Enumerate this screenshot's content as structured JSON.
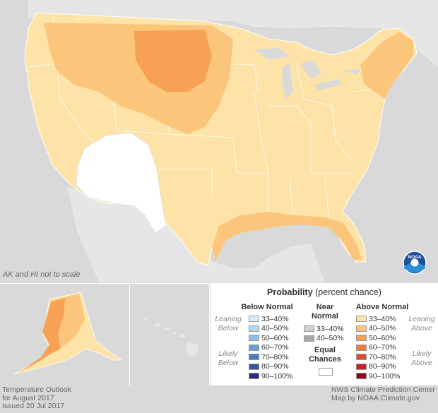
{
  "map": {
    "note": "AK and HI not to scale"
  },
  "legend": {
    "title_bold": "Probability",
    "title_rest": "(percent chance)",
    "below_header": "Below Normal",
    "near_header_1": "Near",
    "near_header_2": "Normal",
    "above_header": "Above Normal",
    "leaning": "Leaning",
    "below_word": "Below",
    "above_word": "Above",
    "likely": "Likely",
    "equal_1": "Equal",
    "equal_2": "Chances",
    "below_rows": [
      {
        "label": "33–40%",
        "color": "#d6ecf8"
      },
      {
        "label": "40–50%",
        "color": "#b4d7ef"
      },
      {
        "label": "50–60%",
        "color": "#8fbfe3"
      },
      {
        "label": "60–70%",
        "color": "#6a9fd3"
      },
      {
        "label": "70–80%",
        "color": "#4b7cc0"
      },
      {
        "label": "80–90%",
        "color": "#3457a6"
      },
      {
        "label": "90–100%",
        "color": "#2a2a87"
      }
    ],
    "near_rows": [
      {
        "label": "33–40%",
        "color": "#cfcfcf"
      },
      {
        "label": "40–50%",
        "color": "#a8a8a8"
      }
    ],
    "above_rows": [
      {
        "label": "33–40%",
        "color": "#fde3a7"
      },
      {
        "label": "40–50%",
        "color": "#fbc67c"
      },
      {
        "label": "50–60%",
        "color": "#f6a154"
      },
      {
        "label": "60–70%",
        "color": "#ef7a3b"
      },
      {
        "label": "70–80%",
        "color": "#e04a2c"
      },
      {
        "label": "80–90%",
        "color": "#c81e24"
      },
      {
        "label": "90–100%",
        "color": "#97001a"
      }
    ]
  },
  "footer": {
    "left_1": "Temperature Outlook",
    "left_2": "for August 2017",
    "left_3": "Issued 20 Jul 2017",
    "right_1": "NWS Climate Prediction Center",
    "right_2": "Map by NOAA Climate.gov"
  },
  "logo": {
    "text": "NOAA"
  },
  "colors": {
    "background": "#d9d9d9",
    "above_33_40": "#fde3a7",
    "above_40_50": "#fbc67c",
    "above_50_60": "#f6a154",
    "above_60_70": "#ef7a3b",
    "equal_chances": "#ffffff"
  }
}
